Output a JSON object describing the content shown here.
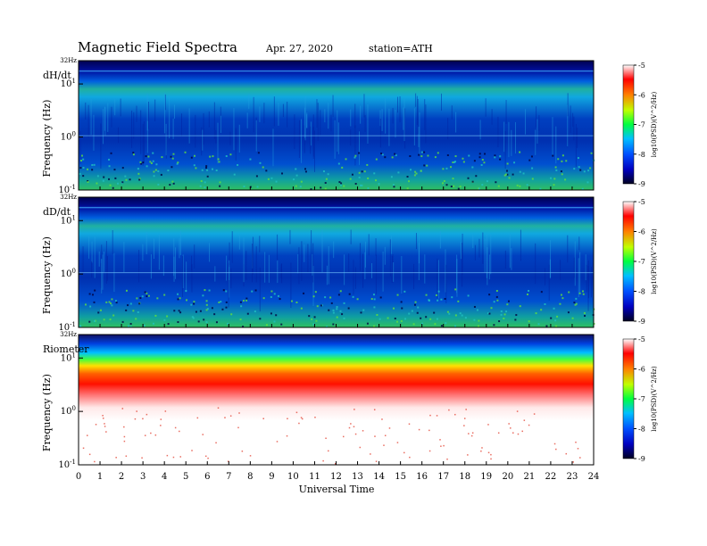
{
  "chart_data": [
    {
      "type": "heatmap",
      "title": "Magnetic Field Spectra",
      "date": "Apr. 27, 2020",
      "station": "station=ATH",
      "panel_label": "dH/dt",
      "top_label": "32Hz",
      "ylabel": "Frequency (Hz)",
      "y_scale": "log",
      "y_ticks": [
        "10^1",
        "10^0",
        "10^-1"
      ],
      "x_ticks": [
        0,
        1,
        2,
        3,
        4,
        5,
        6,
        7,
        8,
        9,
        10,
        11,
        12,
        13,
        14,
        15,
        16,
        17,
        18,
        19,
        20,
        21,
        22,
        23,
        24
      ],
      "xlim": [
        0,
        24
      ],
      "colorbar": {
        "label": "log10(PSD)(V^2/Hz)",
        "ticks": [
          -5,
          -6,
          -7,
          -8,
          -9
        ],
        "range": [
          -9,
          -5
        ]
      }
    },
    {
      "type": "heatmap",
      "panel_label": "dD/dt",
      "top_label": "32Hz",
      "ylabel": "Frequency (Hz)",
      "y_scale": "log",
      "y_ticks": [
        "10^1",
        "10^0",
        "10^-1"
      ],
      "x_ticks": [
        0,
        1,
        2,
        3,
        4,
        5,
        6,
        7,
        8,
        9,
        10,
        11,
        12,
        13,
        14,
        15,
        16,
        17,
        18,
        19,
        20,
        21,
        22,
        23,
        24
      ],
      "xlim": [
        0,
        24
      ],
      "colorbar": {
        "label": "log10(PSD)(V^2/Hz)",
        "ticks": [
          -5,
          -6,
          -7,
          -8,
          -9
        ],
        "range": [
          -9,
          -5
        ]
      }
    },
    {
      "type": "heatmap",
      "panel_label": "Riometer",
      "top_label": "32Hz",
      "ylabel": "Frequency (Hz)",
      "y_scale": "log",
      "y_ticks": [
        "10^1",
        "10^0",
        "10^-1"
      ],
      "x_ticks": [
        0,
        1,
        2,
        3,
        4,
        5,
        6,
        7,
        8,
        9,
        10,
        11,
        12,
        13,
        14,
        15,
        16,
        17,
        18,
        19,
        20,
        21,
        22,
        23,
        24
      ],
      "xlabel": "Universal Time",
      "xlim": [
        0,
        24
      ],
      "colorbar": {
        "label": "log10(PSD)(V^2/Hz)",
        "ticks": [
          -5,
          -6,
          -7,
          -8,
          -9
        ],
        "range": [
          -9,
          -5
        ]
      }
    }
  ]
}
